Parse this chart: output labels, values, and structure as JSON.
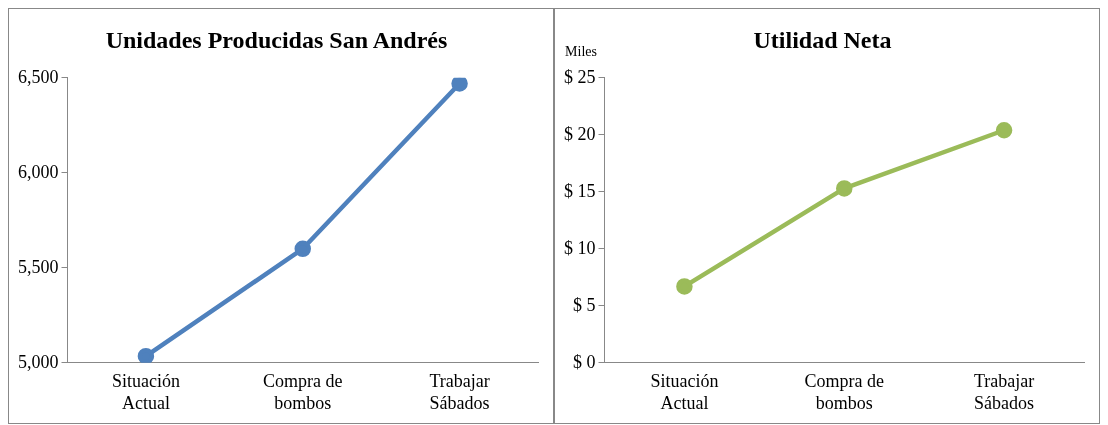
{
  "chart_data": [
    {
      "type": "line",
      "title": "Unidades Producidas San Andrés",
      "categories": [
        "Situación Actual",
        "Compra de bombos",
        "Trabajar Sábados"
      ],
      "series": [
        {
          "color": "#4f81bd",
          "values": [
            5035,
            5600,
            6470
          ]
        }
      ],
      "ylim": [
        5000,
        6500
      ],
      "yticks": [
        {
          "value": 5000,
          "label": "5,000"
        },
        {
          "value": 5500,
          "label": "5,500"
        },
        {
          "value": 6000,
          "label": "6,000"
        },
        {
          "value": 6500,
          "label": "6,500"
        }
      ],
      "grid": false,
      "legend": false,
      "marker": "circle",
      "line_style": "solid"
    },
    {
      "type": "line",
      "title": "Utilidad Neta",
      "ylabel": "Miles",
      "categories": [
        "Situación Actual",
        "Compra de bombos",
        "Trabajar Sábados"
      ],
      "series": [
        {
          "color": "#9bbb59",
          "values": [
            6.7,
            15.3,
            20.4
          ]
        }
      ],
      "ylim": [
        0,
        25
      ],
      "yticks": [
        {
          "value": 0,
          "label": "$ 0"
        },
        {
          "value": 5,
          "label": "$ 5"
        },
        {
          "value": 10,
          "label": "$ 10"
        },
        {
          "value": 15,
          "label": "$ 15"
        },
        {
          "value": 20,
          "label": "$ 20"
        },
        {
          "value": 25,
          "label": "$ 25"
        }
      ],
      "grid": false,
      "legend": false,
      "marker": "circle",
      "line_style": "solid"
    }
  ]
}
